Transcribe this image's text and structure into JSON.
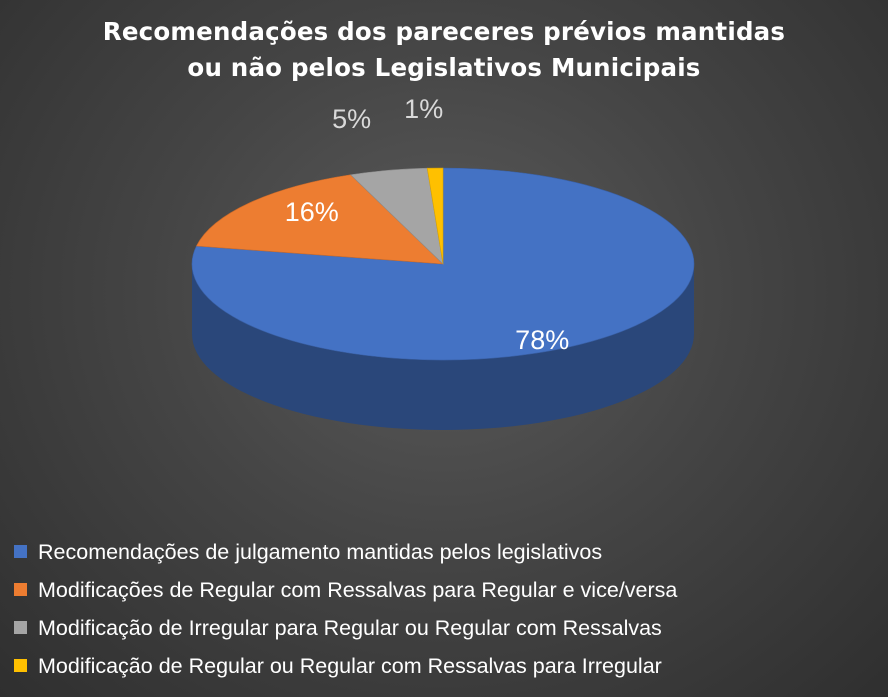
{
  "chart_data": {
    "type": "pie",
    "title": [
      "Recomendações dos pareceres prévios mantidas",
      "ou não pelos Legislativos Municipais"
    ],
    "slices": [
      {
        "name": "Recomendações  de julgamento mantidas pelos legislativos",
        "value": 78,
        "label": "78%",
        "color": "#4472c4"
      },
      {
        "name": "Modificações de Regular com Ressalvas para Regular e vice/versa",
        "value": 16,
        "label": "16%",
        "color": "#ed7d31"
      },
      {
        "name": "Modificação de Irregular para Regular ou Regular com Ressalvas",
        "value": 5,
        "label": "5%",
        "color": "#a5a5a5"
      },
      {
        "name": "Modificação de Regular ou Regular com Ressalvas para Irregular",
        "value": 1,
        "label": "1%",
        "color": "#ffc000"
      }
    ],
    "legend_position": "bottom-left",
    "style": "3d"
  }
}
